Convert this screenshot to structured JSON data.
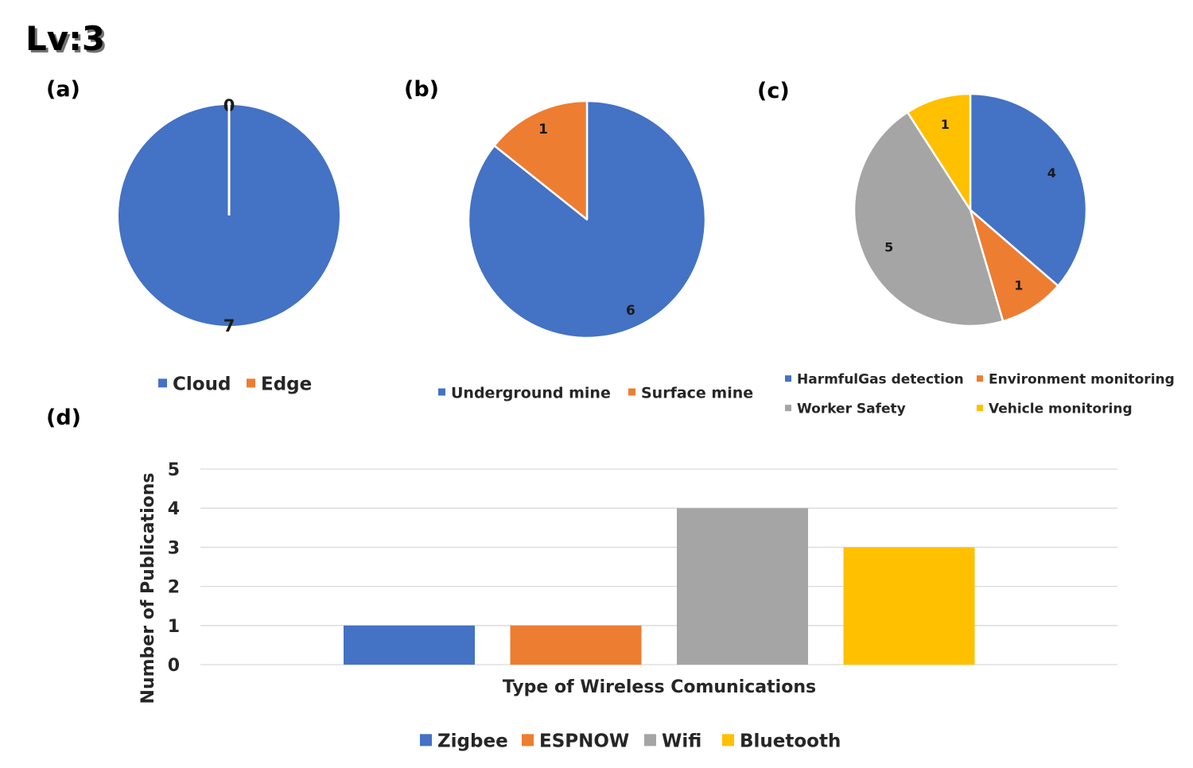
{
  "page_title": "Lv:3",
  "colors": {
    "blue": "#4472C4",
    "orange": "#ED7D31",
    "gray": "#A5A5A5",
    "yellow": "#FFC000",
    "grid": "#D9D9D9",
    "text": "#262626"
  },
  "chart_data": [
    {
      "id": "a",
      "panel_label": "(a)",
      "type": "pie",
      "categories": [
        "Cloud",
        "Edge"
      ],
      "values": [
        7,
        0
      ],
      "colors": [
        "#4472C4",
        "#ED7D31"
      ],
      "legend_position": "bottom"
    },
    {
      "id": "b",
      "panel_label": "(b)",
      "type": "pie",
      "categories": [
        "Underground mine",
        "Surface mine"
      ],
      "values": [
        6,
        1
      ],
      "colors": [
        "#4472C4",
        "#ED7D31"
      ],
      "legend_position": "bottom"
    },
    {
      "id": "c",
      "panel_label": "(c)",
      "type": "pie",
      "categories": [
        "HarmfulGas detection",
        "Environment monitoring",
        "Worker Safety",
        "Vehicle monitoring"
      ],
      "values": [
        4,
        1,
        5,
        1
      ],
      "colors": [
        "#4472C4",
        "#ED7D31",
        "#A5A5A5",
        "#FFC000"
      ],
      "legend_position": "bottom"
    },
    {
      "id": "d",
      "panel_label": "(d)",
      "type": "bar",
      "categories": [
        ""
      ],
      "series": [
        {
          "name": "Zigbee",
          "values": [
            1
          ],
          "color": "#4472C4"
        },
        {
          "name": "ESPNOW",
          "values": [
            1
          ],
          "color": "#ED7D31"
        },
        {
          "name": "Wifi",
          "values": [
            4
          ],
          "color": "#A5A5A5"
        },
        {
          "name": "Bluetooth",
          "values": [
            3
          ],
          "color": "#FFC000"
        }
      ],
      "xlabel": "Type of Wireless Comunications",
      "ylabel": "Number of Publications",
      "ylim": [
        0,
        5
      ],
      "yticks": [
        0,
        1,
        2,
        3,
        4,
        5
      ],
      "grid": true,
      "legend_position": "bottom"
    }
  ]
}
